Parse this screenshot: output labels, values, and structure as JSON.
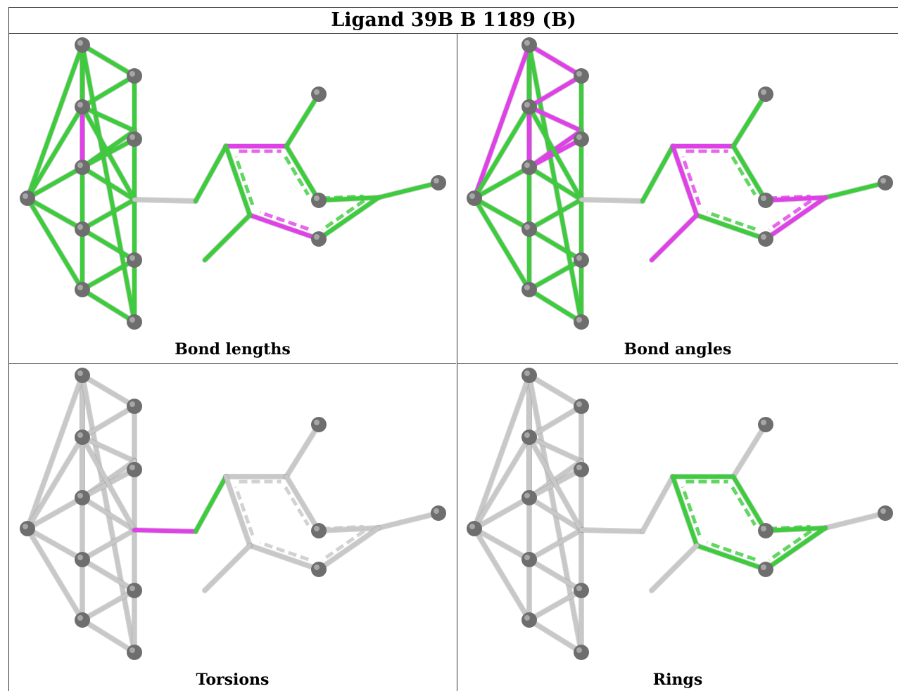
{
  "title": "Ligand 39B B 1189 (B)",
  "panels": [
    {
      "caption": "Bond lengths"
    },
    {
      "caption": "Bond angles"
    },
    {
      "caption": "Torsions"
    },
    {
      "caption": "Rings"
    }
  ],
  "colors": {
    "green": "#3ccc3c",
    "magenta": "#e040e8",
    "grey": "#c8c8c8",
    "atom": "#6e6e6e"
  }
}
